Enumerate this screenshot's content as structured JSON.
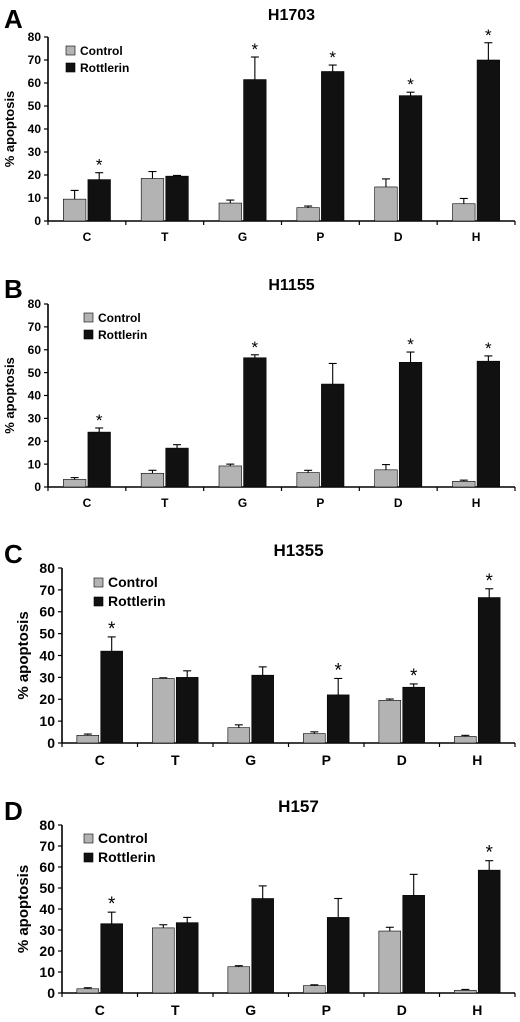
{
  "colors": {
    "control": "#b3b3b3",
    "rottlerin": "#111111",
    "axis": "#000000"
  },
  "chart_data": [
    {
      "type": "bar",
      "panel": "A",
      "title": "H1703",
      "ylabel": "% apoptosis",
      "xlabel": "",
      "ylim": [
        0,
        80
      ],
      "yticks": [
        0,
        10,
        20,
        30,
        40,
        50,
        60,
        70,
        80
      ],
      "categories": [
        "C",
        "T",
        "G",
        "P",
        "D",
        "H"
      ],
      "legend_position": "top-left",
      "series": [
        {
          "name": "Control",
          "color_key": "control",
          "values": [
            9.5,
            18.5,
            7.8,
            5.8,
            14.8,
            7.5
          ],
          "errors": [
            3.8,
            3.0,
            1.3,
            0.7,
            3.5,
            2.3
          ]
        },
        {
          "name": "Rottlerin",
          "color_key": "rottlerin",
          "values": [
            18,
            19.5,
            61.5,
            65,
            54.5,
            70
          ],
          "errors": [
            3.0,
            0.3,
            9.8,
            2.8,
            1.5,
            7.5
          ],
          "significant": [
            true,
            false,
            true,
            true,
            true,
            true
          ]
        }
      ]
    },
    {
      "type": "bar",
      "panel": "B",
      "title": "H1155",
      "ylabel": "% apoptosis",
      "xlabel": "",
      "ylim": [
        0,
        80
      ],
      "yticks": [
        0,
        10,
        20,
        30,
        40,
        50,
        60,
        70,
        80
      ],
      "categories": [
        "C",
        "T",
        "G",
        "P",
        "D",
        "H"
      ],
      "legend_position": "top-left",
      "series": [
        {
          "name": "Control",
          "color_key": "control",
          "values": [
            3.3,
            6.0,
            9.2,
            6.3,
            7.5,
            2.5
          ],
          "errors": [
            0.8,
            1.3,
            0.8,
            1.0,
            2.3,
            0.5
          ]
        },
        {
          "name": "Rottlerin",
          "color_key": "rottlerin",
          "values": [
            24,
            17,
            56.5,
            45,
            54.5,
            55
          ],
          "errors": [
            1.8,
            1.5,
            1.3,
            9.0,
            4.5,
            2.3
          ],
          "significant": [
            true,
            false,
            true,
            false,
            true,
            true
          ]
        }
      ]
    },
    {
      "type": "bar",
      "panel": "C",
      "title": "H1355",
      "ylabel": "% apoptosis",
      "xlabel": "",
      "ylim": [
        0,
        80
      ],
      "yticks": [
        0,
        10,
        20,
        30,
        40,
        50,
        60,
        70,
        80
      ],
      "categories": [
        "C",
        "T",
        "G",
        "P",
        "D",
        "H"
      ],
      "legend_position": "top-left",
      "series": [
        {
          "name": "Control",
          "color_key": "control",
          "values": [
            3.5,
            29.5,
            7,
            4.3,
            19.5,
            3
          ],
          "errors": [
            0.6,
            0.3,
            1.3,
            0.8,
            0.6,
            0.5
          ]
        },
        {
          "name": "Rottlerin",
          "color_key": "rottlerin",
          "values": [
            42,
            30,
            31,
            22,
            25.5,
            66.5
          ],
          "errors": [
            6.5,
            3.0,
            3.8,
            7.5,
            1.5,
            4.0
          ],
          "significant": [
            true,
            false,
            false,
            true,
            true,
            true
          ]
        }
      ]
    },
    {
      "type": "bar",
      "panel": "D",
      "title": "H157",
      "ylabel": "% apoptosis",
      "xlabel": "",
      "ylim": [
        0,
        80
      ],
      "yticks": [
        0,
        10,
        20,
        30,
        40,
        50,
        60,
        70,
        80
      ],
      "categories": [
        "C",
        "T",
        "G",
        "P",
        "D",
        "H"
      ],
      "legend_position": "top-left",
      "series": [
        {
          "name": "Control",
          "color_key": "control",
          "values": [
            2,
            31,
            12.5,
            3.5,
            29.5,
            1.3
          ],
          "errors": [
            0.5,
            1.5,
            0.5,
            0.4,
            1.8,
            0.4
          ]
        },
        {
          "name": "Rottlerin",
          "color_key": "rottlerin",
          "values": [
            33,
            33.5,
            45,
            36,
            46.5,
            58.5
          ],
          "errors": [
            5.5,
            2.5,
            6.0,
            9.0,
            10.0,
            4.5
          ],
          "significant": [
            true,
            false,
            false,
            false,
            false,
            true
          ]
        }
      ]
    }
  ]
}
